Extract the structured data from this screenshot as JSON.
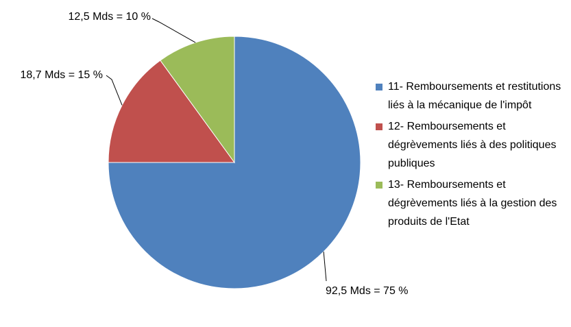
{
  "chart_data": {
    "type": "pie",
    "categories": [
      "11- Remboursements et restitutions liés à la mécanique de l'impôt",
      "12- Remboursements et dégrèvements liés à des politiques publiques",
      "13- Remboursements et dégrèvements liés à la gestion des produits de l'Etat"
    ],
    "values": [
      75,
      15,
      10
    ],
    "value_labels": [
      "92,5 Mds = 75 %",
      "18,7 Mds = 15 %",
      "12,5 Mds = 10 %"
    ],
    "colors": [
      "#4f81bd",
      "#c0504d",
      "#9bbb59"
    ],
    "legend": "right"
  }
}
